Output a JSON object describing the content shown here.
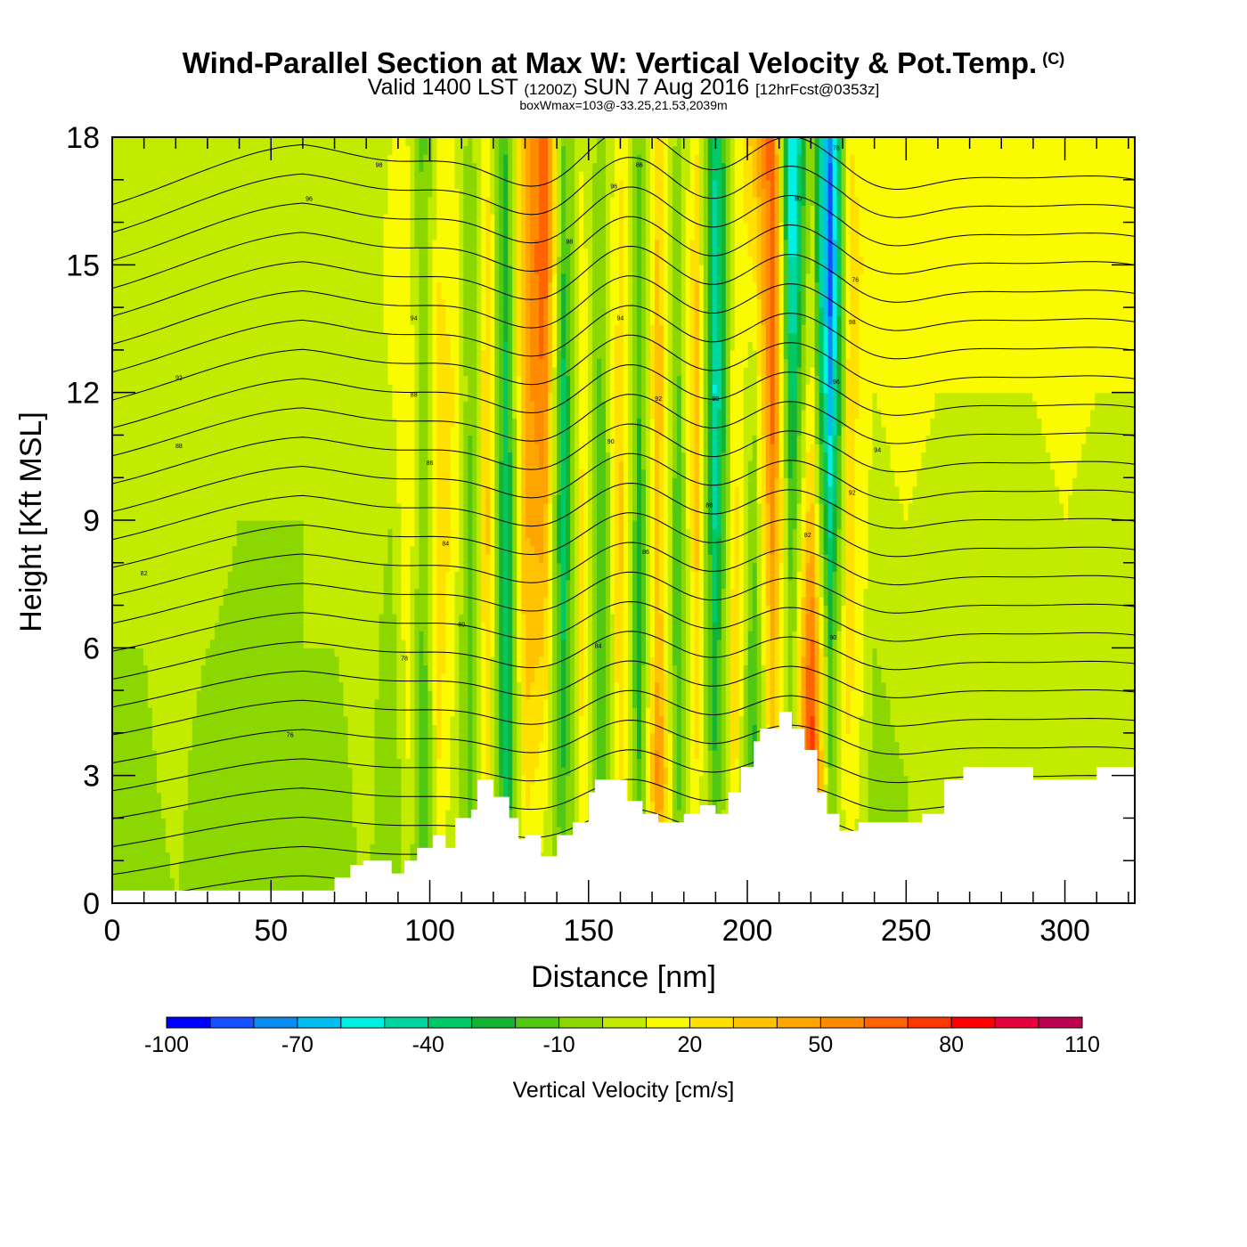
{
  "header": {
    "title": "Wind-Parallel Section at Max W: Vertical Velocity & Pot.Temp.",
    "copyright": "(C)",
    "valid_prefix": "Valid 1400 LST",
    "valid_utc": "(1200Z)",
    "valid_date": "SUN 7 Aug 2016",
    "forecast": "[12hrFcst@0353z]",
    "box_wmax": "boxWmax=103@-33.25,21.53,2039m"
  },
  "chart_data": {
    "type": "heatmap",
    "xlabel": "Distance [nm]",
    "ylabel": "Height [Kft MSL]",
    "xlim": [
      0,
      322
    ],
    "ylim": [
      0,
      18
    ],
    "x_ticks": [
      0,
      50,
      100,
      150,
      200,
      250,
      300
    ],
    "y_ticks": [
      0,
      3,
      6,
      9,
      12,
      15,
      18
    ],
    "colorbar": {
      "title": "Vertical Velocity [cm/s]",
      "bounds": [
        -100,
        -90,
        -80,
        -70,
        -60,
        -50,
        -40,
        -30,
        -20,
        -10,
        0,
        10,
        20,
        30,
        40,
        50,
        60,
        70,
        80,
        90,
        100,
        110
      ],
      "labels": [
        "-100",
        "-70",
        "-40",
        "-10",
        "20",
        "50",
        "80",
        "110"
      ],
      "label_values": [
        -100,
        -70,
        -40,
        -10,
        20,
        50,
        80,
        110
      ],
      "colors": [
        "#0000ff",
        "#1450ff",
        "#0a8cf0",
        "#00bef0",
        "#00f0e6",
        "#00d7a0",
        "#00c864",
        "#14b432",
        "#50c814",
        "#8cd700",
        "#c3eb00",
        "#fafa00",
        "#ffe100",
        "#ffc300",
        "#ffa500",
        "#ff8c00",
        "#ff6400",
        "#ff3700",
        "#ff0000",
        "#e6003c",
        "#be0050"
      ]
    },
    "field": {
      "description_hidden": false,
      "columns_nm": [
        0,
        10,
        20,
        30,
        40,
        50,
        60,
        70,
        80,
        88,
        93,
        98,
        103,
        108,
        113,
        118,
        124,
        130,
        136,
        142,
        148,
        154,
        160,
        166,
        172,
        178,
        184,
        190,
        196,
        202,
        208,
        214,
        220,
        226,
        232,
        240,
        250,
        260,
        270,
        280,
        290,
        300,
        310,
        322
      ],
      "rows_kft": [
        0,
        3,
        6,
        9,
        12,
        15,
        18
      ],
      "w_cms": [
        [
          0,
          0,
          0,
          0,
          0,
          0,
          0
        ],
        [
          -5,
          -2,
          0,
          5,
          0,
          0,
          0
        ],
        [
          0,
          3,
          5,
          5,
          2,
          0,
          0
        ],
        [
          -5,
          -5,
          0,
          5,
          5,
          3,
          0
        ],
        [
          -5,
          -8,
          -3,
          0,
          5,
          5,
          5
        ],
        [
          0,
          -5,
          -5,
          0,
          5,
          0,
          0
        ],
        [
          0,
          0,
          0,
          0,
          0,
          0,
          0
        ],
        [
          -5,
          -5,
          0,
          0,
          5,
          5,
          5
        ],
        [
          0,
          5,
          5,
          5,
          5,
          0,
          0
        ],
        [
          -5,
          -10,
          -5,
          0,
          10,
          15,
          10
        ],
        [
          5,
          10,
          15,
          20,
          20,
          15,
          10
        ],
        [
          -15,
          -20,
          -15,
          -10,
          -5,
          -10,
          -15
        ],
        [
          10,
          20,
          25,
          30,
          25,
          20,
          15
        ],
        [
          0,
          5,
          10,
          15,
          20,
          15,
          10
        ],
        [
          -10,
          -15,
          -20,
          -15,
          -10,
          -10,
          -5
        ],
        [
          20,
          25,
          30,
          35,
          30,
          25,
          20
        ],
        [
          -20,
          -35,
          -40,
          -40,
          -35,
          -25,
          -20
        ],
        [
          10,
          25,
          35,
          40,
          45,
          45,
          40
        ],
        [
          5,
          15,
          30,
          45,
          60,
          70,
          70
        ],
        [
          -10,
          -20,
          -30,
          -40,
          -35,
          -20,
          -10
        ],
        [
          10,
          20,
          25,
          25,
          20,
          15,
          10
        ],
        [
          -5,
          -15,
          -20,
          -20,
          -15,
          -10,
          -5
        ],
        [
          15,
          25,
          30,
          35,
          30,
          25,
          20
        ],
        [
          -10,
          -20,
          -25,
          -25,
          -20,
          -15,
          -10
        ],
        [
          20,
          60,
          40,
          35,
          40,
          35,
          30
        ],
        [
          -5,
          -15,
          -20,
          -20,
          -15,
          -10,
          -5
        ],
        [
          10,
          20,
          25,
          35,
          40,
          30,
          20
        ],
        [
          -5,
          -20,
          -30,
          -45,
          -55,
          -50,
          -40
        ],
        [
          15,
          25,
          30,
          25,
          20,
          15,
          10
        ],
        [
          -10,
          -25,
          -20,
          -10,
          0,
          20,
          35
        ],
        [
          20,
          30,
          40,
          55,
          65,
          70,
          70
        ],
        [
          -10,
          -10,
          -10,
          -20,
          -40,
          -60,
          -70
        ],
        [
          30,
          85,
          70,
          40,
          20,
          10,
          5
        ],
        [
          -5,
          -10,
          -20,
          -45,
          -70,
          -90,
          -80
        ],
        [
          10,
          20,
          25,
          25,
          25,
          25,
          20
        ],
        [
          -5,
          -5,
          0,
          5,
          10,
          15,
          15
        ],
        [
          0,
          0,
          5,
          10,
          15,
          20,
          20
        ],
        [
          0,
          0,
          5,
          5,
          10,
          15,
          15
        ],
        [
          0,
          0,
          5,
          10,
          10,
          15,
          20
        ],
        [
          0,
          0,
          0,
          5,
          10,
          10,
          15
        ],
        [
          0,
          0,
          5,
          5,
          10,
          15,
          15
        ],
        [
          0,
          5,
          5,
          10,
          15,
          20,
          20
        ],
        [
          0,
          0,
          5,
          5,
          10,
          15,
          20
        ],
        [
          0,
          0,
          0,
          5,
          10,
          15,
          15
        ]
      ]
    },
    "terrain_kft": {
      "x": [
        0,
        70,
        70,
        72,
        75,
        79,
        80,
        88,
        88,
        92,
        92,
        96,
        101,
        105,
        108,
        113,
        115,
        118,
        120,
        125,
        128,
        130,
        135,
        140,
        145,
        150,
        152,
        156,
        162,
        167,
        172,
        176,
        180,
        185,
        190,
        194,
        198,
        202,
        204,
        210,
        214,
        218,
        222,
        225,
        229,
        235,
        245,
        255,
        262,
        268,
        280,
        290,
        300,
        310,
        322
      ],
      "y": [
        0.3,
        0.3,
        0.6,
        0.6,
        0.9,
        1.0,
        1.0,
        1.0,
        0.7,
        0.7,
        1.0,
        1.3,
        1.6,
        1.3,
        2.0,
        2.2,
        2.9,
        2.9,
        2.5,
        2.0,
        1.5,
        1.6,
        1.1,
        1.6,
        1.9,
        2.6,
        2.9,
        2.9,
        2.4,
        2.1,
        1.9,
        1.9,
        2.1,
        2.3,
        2.1,
        2.6,
        3.2,
        3.8,
        4.1,
        4.5,
        4.1,
        3.6,
        2.6,
        2.1,
        1.7,
        1.9,
        1.9,
        2.1,
        2.9,
        3.2,
        3.2,
        2.9,
        2.9,
        3.2,
        3.2
      ]
    },
    "theta_contour_labels": [
      "98",
      "96",
      "94",
      "92",
      "90",
      "88",
      "86",
      "84",
      "82",
      "80",
      "78",
      "76"
    ]
  }
}
